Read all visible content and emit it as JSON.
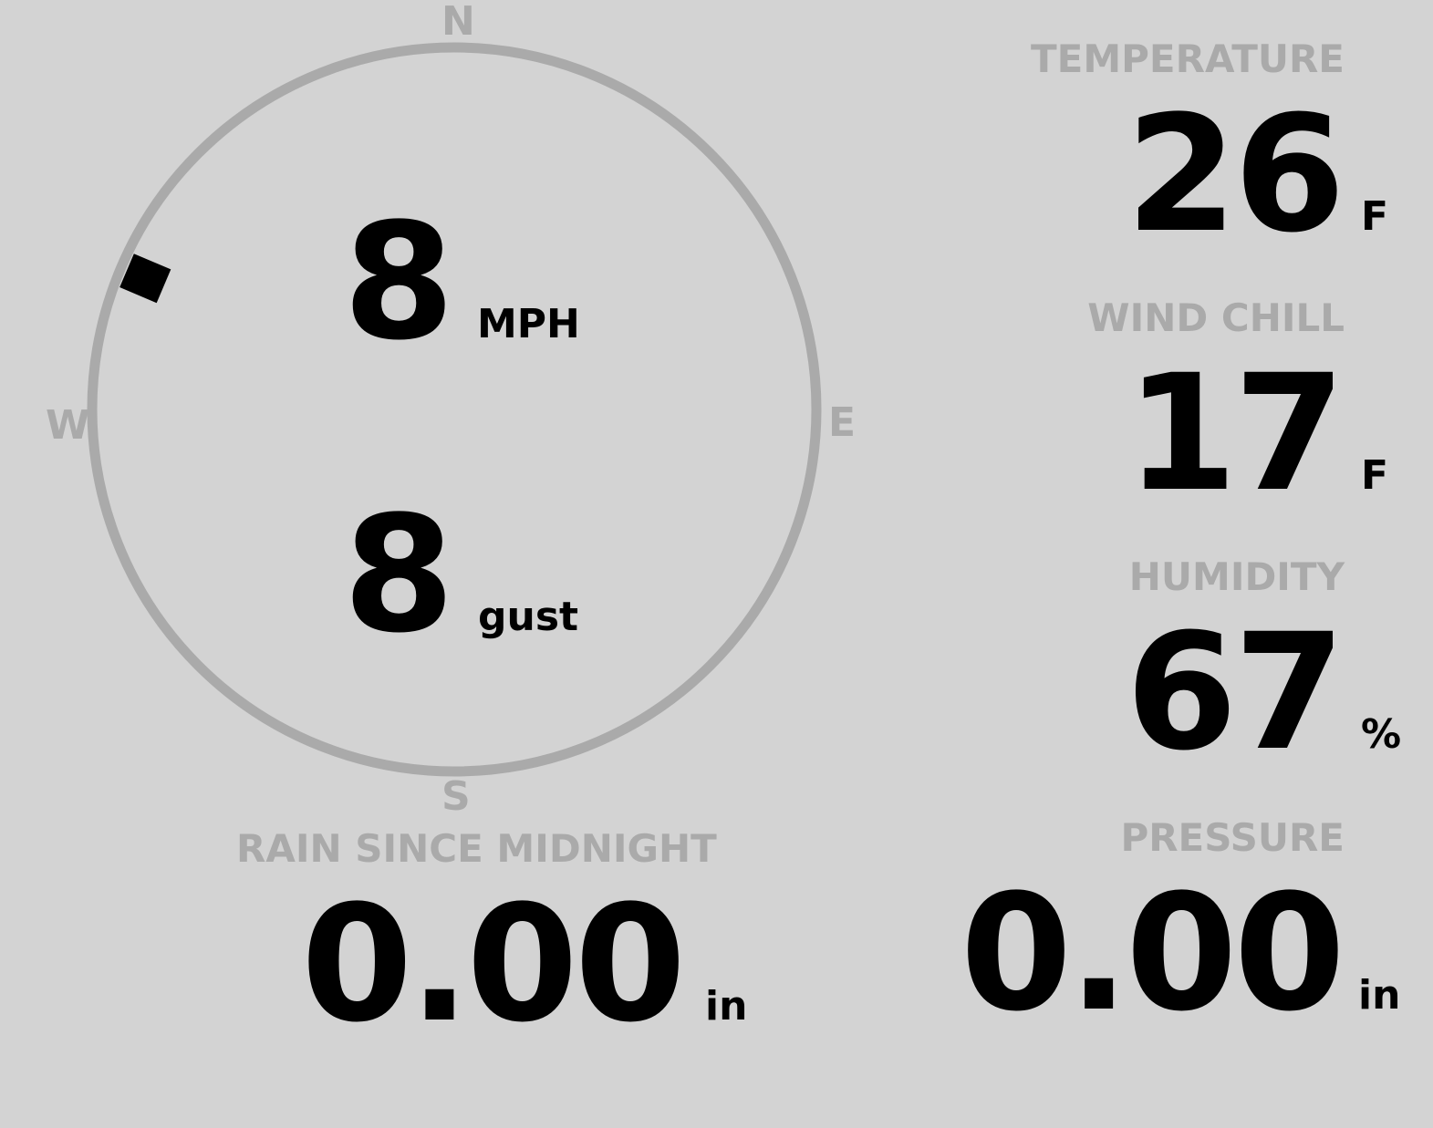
{
  "compass": {
    "north": "N",
    "south": "S",
    "east": "E",
    "west": "W",
    "direction_deg": 293,
    "ring_color": "#aaaaaa",
    "marker_color": "#000000"
  },
  "wind": {
    "speed": "8",
    "speed_unit": "MPH",
    "gust": "8",
    "gust_unit": "gust"
  },
  "temperature": {
    "label": "TEMPERATURE",
    "value": "26",
    "unit": "F"
  },
  "wind_chill": {
    "label": "WIND CHILL",
    "value": "17",
    "unit": "F"
  },
  "humidity": {
    "label": "HUMIDITY",
    "value": "67",
    "unit": "%"
  },
  "rain": {
    "label": "RAIN SINCE MIDNIGHT",
    "value": "0.00",
    "unit": "in"
  },
  "pressure": {
    "label": "PRESSURE",
    "value": "0.00",
    "unit": "in"
  }
}
